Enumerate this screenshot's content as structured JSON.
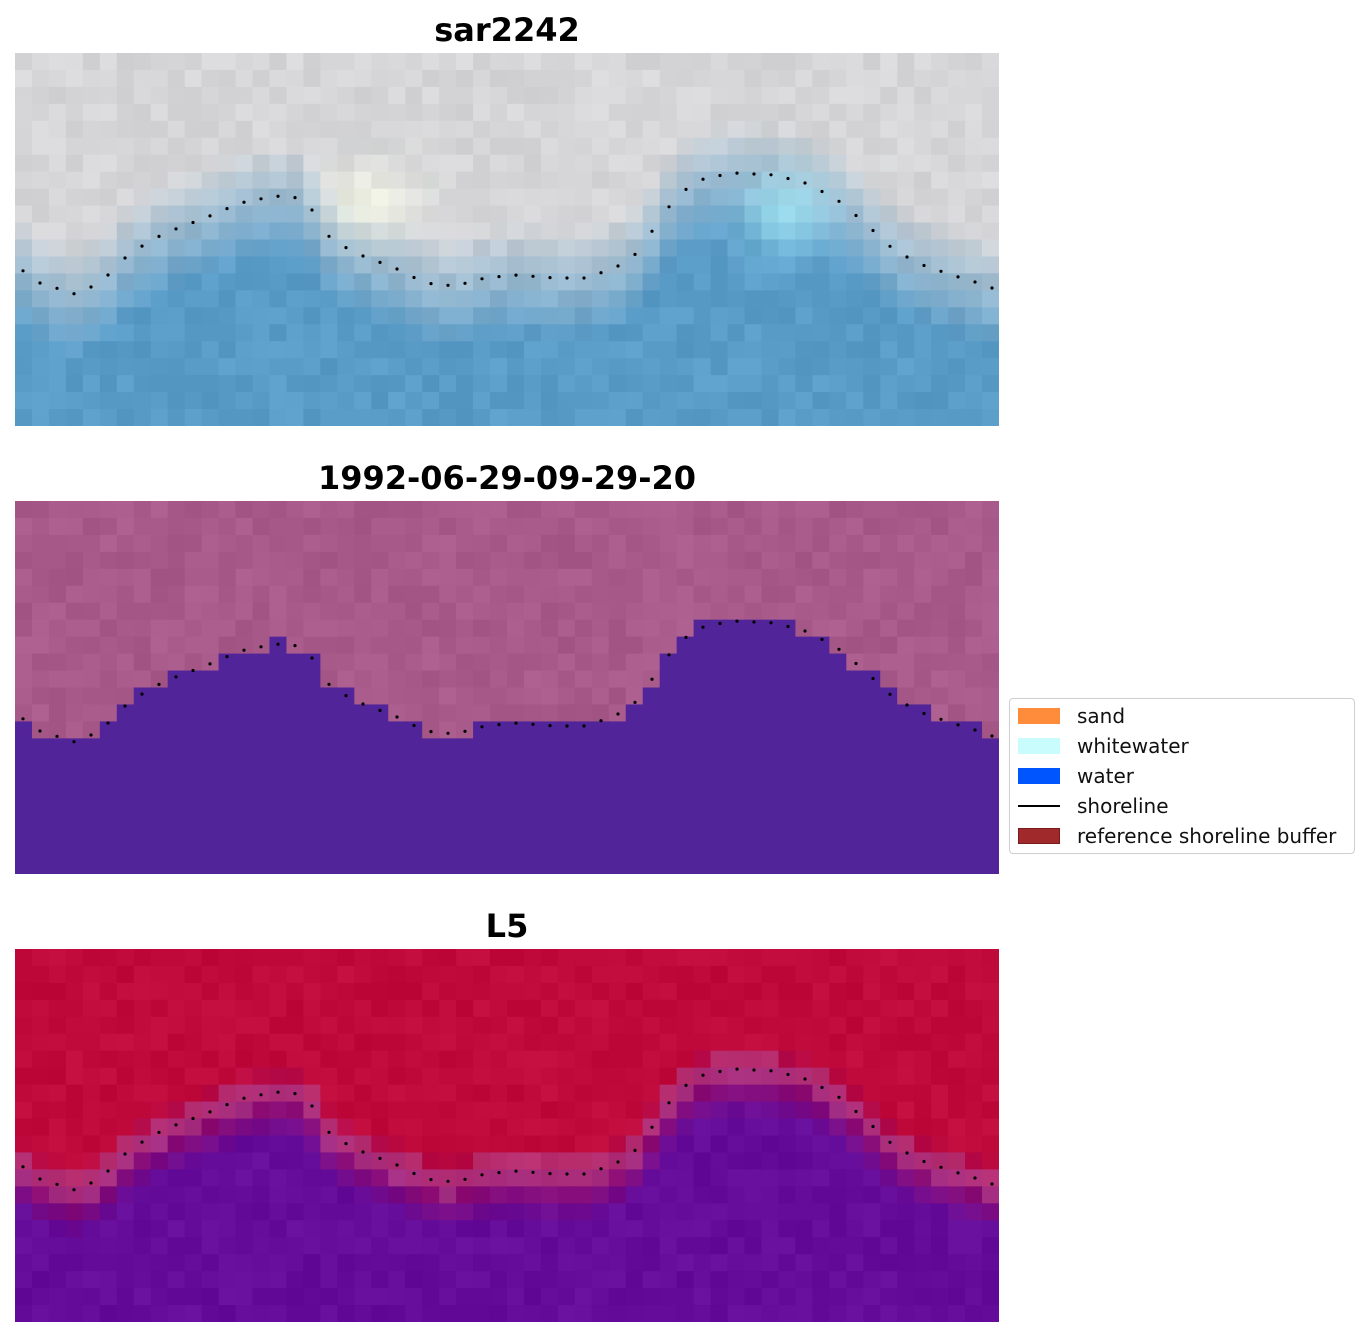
{
  "panels": [
    {
      "title": "sar2242",
      "style": "rgb"
    },
    {
      "title": "1992-06-29-09-29-20",
      "style": "class"
    },
    {
      "title": "L5",
      "style": "prob"
    }
  ],
  "legend": {
    "items": [
      {
        "label": "sand",
        "kind": "patch",
        "color": "#ff8c3a"
      },
      {
        "label": "whitewater",
        "kind": "patch",
        "color": "#c9fcfc"
      },
      {
        "label": "water",
        "kind": "patch",
        "color": "#0055ff"
      },
      {
        "label": "shoreline",
        "kind": "line",
        "color": "#000000"
      },
      {
        "label": "reference shoreline buffer",
        "kind": "patch",
        "color": "#a0292b",
        "edge": "#7a1c1c"
      }
    ]
  },
  "colors": {
    "sky_light": "#d6d6d8",
    "water_blue": "#5a9cc8",
    "land_pink": "#a85a8a",
    "water_purple": "#52249a",
    "prob_red": "#c00a3c",
    "prob_purple": "#650c9a",
    "shoreline_dots": "#000000"
  }
}
